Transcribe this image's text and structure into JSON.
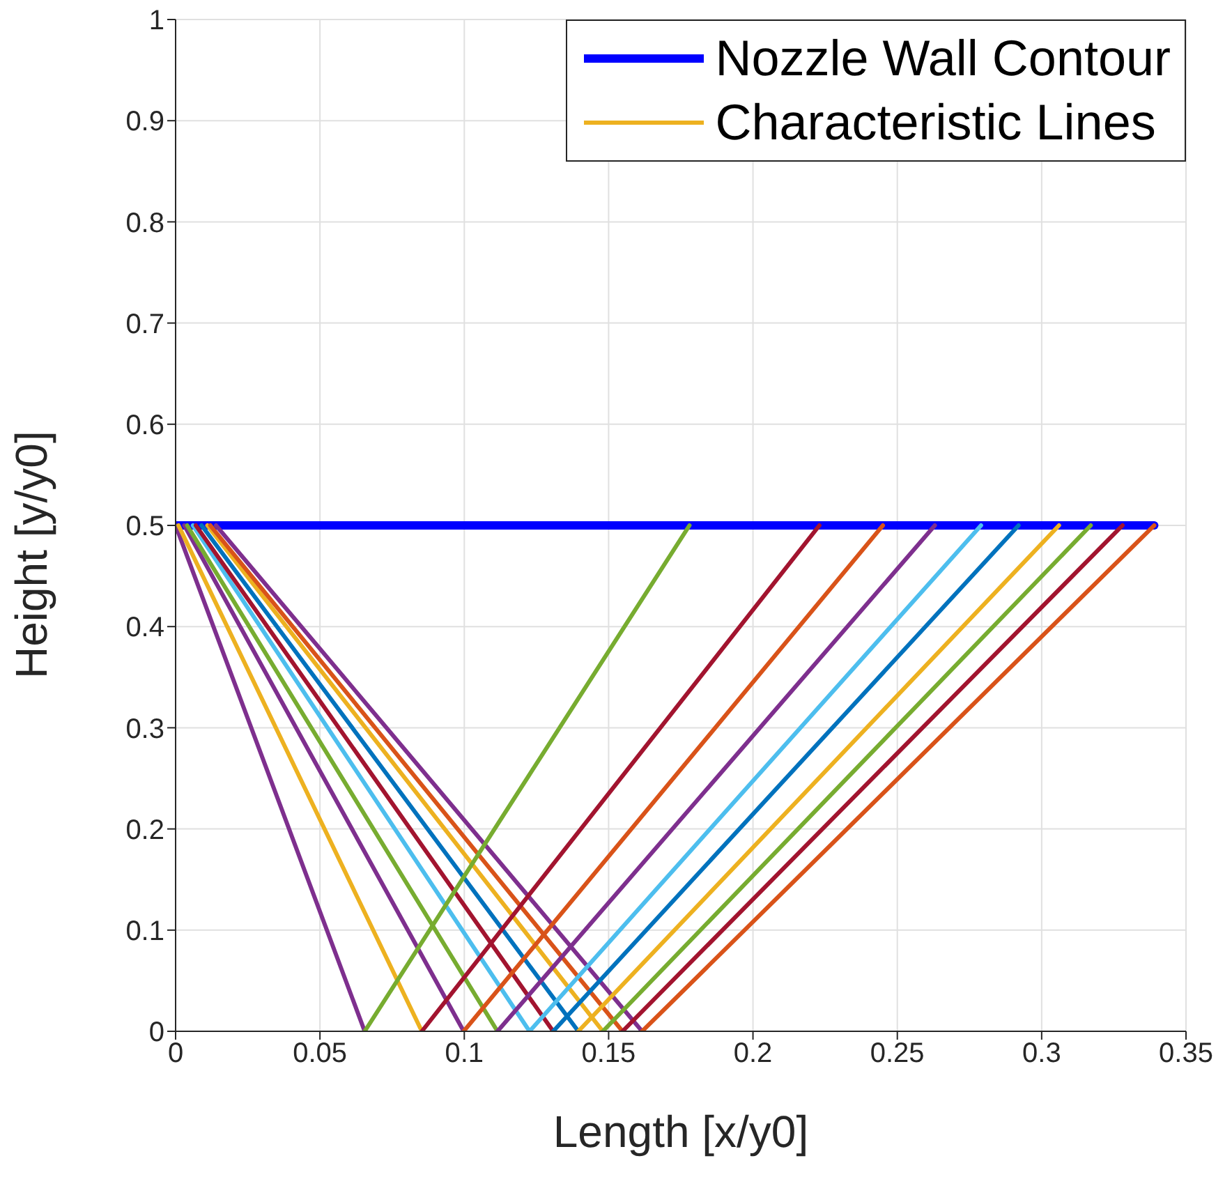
{
  "chart_data": {
    "type": "line",
    "xlabel": "Length [x/y0]",
    "ylabel": "Height [y/y0]",
    "xlim": [
      0,
      0.35
    ],
    "xticks": [
      0,
      0.05,
      0.1,
      0.15,
      0.2,
      0.25,
      0.3,
      0.35
    ],
    "ylim": [
      0,
      1
    ],
    "yticks": [
      0,
      0.1,
      0.2,
      0.3,
      0.4,
      0.5,
      0.6,
      0.7,
      0.8,
      0.9,
      1
    ],
    "grid": true,
    "legend": "top right",
    "marker": "none",
    "line_style": "solid",
    "series": [
      {
        "name": "Nozzle Wall Contour",
        "color": "#0000ff",
        "x": [
          0,
          0.339
        ],
        "values": [
          0.5,
          0.5
        ]
      },
      {
        "color": "#7e2f8e",
        "x": [
          0,
          0.0655
        ],
        "values": [
          0.5,
          0
        ]
      },
      {
        "name": "Characteristic Lines",
        "color": "#edb120",
        "x": [
          0.001,
          0.0853
        ],
        "values": [
          0.5,
          0
        ]
      },
      {
        "color": "#7e2f8e",
        "x": [
          0.003,
          0.0998
        ],
        "values": [
          0.5,
          0
        ]
      },
      {
        "color": "#77ac30",
        "x": [
          0.004,
          0.1115
        ],
        "values": [
          0.5,
          0
        ]
      },
      {
        "color": "#4dbeee",
        "x": [
          0.006,
          0.1226
        ],
        "values": [
          0.5,
          0
        ]
      },
      {
        "color": "#a2142f",
        "x": [
          0.007,
          0.1308
        ],
        "values": [
          0.5,
          0
        ]
      },
      {
        "color": "#0072bd",
        "x": [
          0.009,
          0.1395
        ],
        "values": [
          0.5,
          0
        ]
      },
      {
        "color": "#edb120",
        "x": [
          0.011,
          0.148
        ],
        "values": [
          0.5,
          0
        ]
      },
      {
        "color": "#d95319",
        "x": [
          0.012,
          0.1548
        ],
        "values": [
          0.5,
          0
        ]
      },
      {
        "color": "#7e2f8e",
        "x": [
          0.014,
          0.1616
        ],
        "values": [
          0.5,
          0
        ]
      },
      {
        "color": "#77ac30",
        "x": [
          0.0655,
          0.178
        ],
        "values": [
          0,
          0.5
        ]
      },
      {
        "color": "#a2142f",
        "x": [
          0.0853,
          0.223
        ],
        "values": [
          0,
          0.5
        ]
      },
      {
        "color": "#d95319",
        "x": [
          0.0998,
          0.245
        ],
        "values": [
          0,
          0.5
        ]
      },
      {
        "color": "#7e2f8e",
        "x": [
          0.1115,
          0.263
        ],
        "values": [
          0,
          0.5
        ]
      },
      {
        "color": "#4dbeee",
        "x": [
          0.1226,
          0.279
        ],
        "values": [
          0,
          0.5
        ]
      },
      {
        "color": "#0072bd",
        "x": [
          0.1308,
          0.292
        ],
        "values": [
          0,
          0.5
        ]
      },
      {
        "color": "#edb120",
        "x": [
          0.1395,
          0.306
        ],
        "values": [
          0,
          0.5
        ]
      },
      {
        "color": "#77ac30",
        "x": [
          0.148,
          0.317
        ],
        "values": [
          0,
          0.5
        ]
      },
      {
        "color": "#a2142f",
        "x": [
          0.1548,
          0.328
        ],
        "values": [
          0,
          0.5
        ]
      },
      {
        "color": "#d95319",
        "x": [
          0.1616,
          0.339
        ],
        "values": [
          0,
          0.5
        ]
      }
    ]
  }
}
